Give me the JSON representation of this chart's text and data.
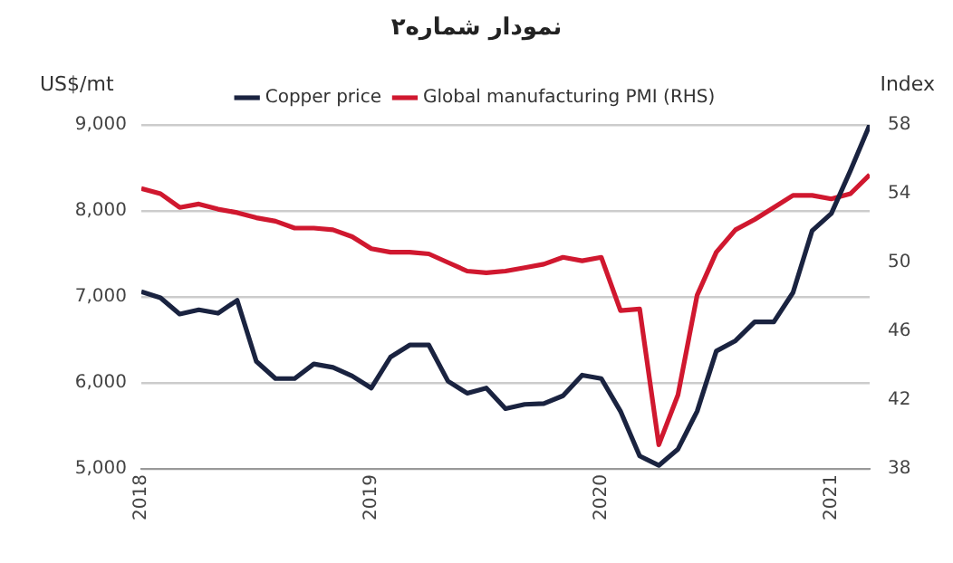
{
  "chart_data": {
    "type": "line",
    "title": "نمودار شماره۲",
    "ylabel": "US$/mt",
    "y2label": "Index",
    "x": [
      "2018-01",
      "2018-02",
      "2018-03",
      "2018-04",
      "2018-05",
      "2018-06",
      "2018-07",
      "2018-08",
      "2018-09",
      "2018-10",
      "2018-11",
      "2018-12",
      "2019-01",
      "2019-02",
      "2019-03",
      "2019-04",
      "2019-05",
      "2019-06",
      "2019-07",
      "2019-08",
      "2019-09",
      "2019-10",
      "2019-11",
      "2019-12",
      "2020-01",
      "2020-02",
      "2020-03",
      "2020-04",
      "2020-05",
      "2020-06",
      "2020-07",
      "2020-08",
      "2020-09",
      "2020-10",
      "2020-11",
      "2020-12",
      "2021-01",
      "2021-02",
      "2021-03"
    ],
    "series": [
      {
        "name": "Copper price",
        "color": "#1a2340",
        "values": [
          7060,
          6990,
          6800,
          6850,
          6810,
          6960,
          6250,
          6050,
          6050,
          6220,
          6180,
          6080,
          5940,
          6300,
          6440,
          6440,
          6020,
          5880,
          5940,
          5700,
          5750,
          5760,
          5850,
          6090,
          6050,
          5670,
          5150,
          5040,
          5230,
          5670,
          6370,
          6490,
          6710,
          6710,
          7050,
          7770,
          7970,
          8470,
          9000
        ]
      },
      {
        "name": "Global manufacturing PMI (RHS)",
        "color": "#d0182f",
        "axis": "y2",
        "values": [
          54.3,
          54.0,
          53.2,
          53.4,
          53.1,
          52.9,
          52.6,
          52.4,
          52.0,
          52.0,
          51.9,
          51.5,
          50.8,
          50.6,
          50.6,
          50.5,
          50.0,
          49.5,
          49.4,
          49.5,
          49.7,
          49.9,
          50.3,
          50.1,
          50.3,
          47.2,
          47.3,
          39.4,
          42.3,
          48.1,
          50.6,
          51.9,
          52.5,
          53.2,
          53.9,
          53.9,
          53.7,
          54.0,
          55.1
        ]
      }
    ],
    "xlim": [
      "2018-01",
      "2021-03"
    ],
    "xticks": [
      "2018",
      "2019",
      "2020",
      "2021"
    ],
    "ylim": [
      5000,
      9000
    ],
    "yticks": [
      {
        "value": 5000,
        "label": "5,000"
      },
      {
        "value": 6000,
        "label": "6,000"
      },
      {
        "value": 7000,
        "label": "7,000"
      },
      {
        "value": 8000,
        "label": "8,000"
      },
      {
        "value": 9000,
        "label": "9,000"
      }
    ],
    "y2lim": [
      38,
      58
    ],
    "y2ticks": [
      38,
      42,
      46,
      50,
      54,
      58
    ],
    "grid": "y",
    "legend": "top",
    "marker": "none",
    "line_style": "solid"
  }
}
